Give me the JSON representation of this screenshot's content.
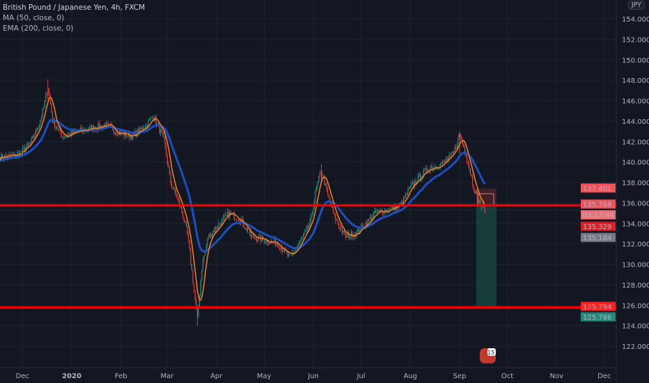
{
  "legend": {
    "symbol": "British Pound / Japanese Yen, 4h, FXCM",
    "ma": "MA (50, close, 0)",
    "ema": "EMA (200, close, 0)"
  },
  "currency": "JPY",
  "countdown": "03:17:44",
  "event_badge": "15",
  "colors": {
    "background": "#131722",
    "up": "#26a69a",
    "down": "#ef5350",
    "ma": "#f7821b",
    "ema": "#1e4fc2",
    "level_line": "#ff0000",
    "stop_zone": "#4a2328",
    "target_zone": "#17413d"
  },
  "chart_data": {
    "type": "candlestick",
    "title": "British Pound / Japanese Yen, 4h, FXCM",
    "y_ticks": [
      "154.000",
      "152.000",
      "150.000",
      "148.000",
      "146.000",
      "144.000",
      "142.000",
      "140.000",
      "138.000",
      "136.000",
      "134.000",
      "132.000",
      "130.000",
      "128.000",
      "126.000",
      "124.000",
      "122.000"
    ],
    "ylim": [
      121.5,
      154.3
    ],
    "x_ticks": [
      {
        "label": "Dec",
        "date": "2019-12-01"
      },
      {
        "label": "2020",
        "date": "2020-01-01",
        "bold": true
      },
      {
        "label": "Feb",
        "date": "2020-02-01"
      },
      {
        "label": "Mar",
        "date": "2020-03-01"
      },
      {
        "label": "Apr",
        "date": "2020-04-01"
      },
      {
        "label": "May",
        "date": "2020-05-01"
      },
      {
        "label": "Jun",
        "date": "2020-06-01"
      },
      {
        "label": "Jul",
        "date": "2020-07-01"
      },
      {
        "label": "Aug",
        "date": "2020-08-01"
      },
      {
        "label": "Sep",
        "date": "2020-09-01"
      },
      {
        "label": "Oct",
        "date": "2020-10-01"
      },
      {
        "label": "Nov",
        "date": "2020-11-01"
      },
      {
        "label": "Dec",
        "date": "2020-12-01"
      }
    ],
    "approx_closes": [
      [
        "2019-11-17",
        140.5
      ],
      [
        "2019-11-27",
        140.6
      ],
      [
        "2019-12-06",
        141.8
      ],
      [
        "2019-12-11",
        143.5
      ],
      [
        "2019-12-14",
        145.0
      ],
      [
        "2019-12-17",
        147.5
      ],
      [
        "2019-12-20",
        144.0
      ],
      [
        "2019-12-26",
        142.5
      ],
      [
        "2020-01-04",
        142.9
      ],
      [
        "2020-01-13",
        143.3
      ],
      [
        "2020-01-22",
        143.6
      ],
      [
        "2020-01-30",
        142.9
      ],
      [
        "2020-02-08",
        142.5
      ],
      [
        "2020-02-17",
        143.6
      ],
      [
        "2020-02-21",
        144.6
      ],
      [
        "2020-02-28",
        142.2
      ],
      [
        "2020-03-03",
        138.1
      ],
      [
        "2020-03-10",
        135.4
      ],
      [
        "2020-03-14",
        132.7
      ],
      [
        "2020-03-19",
        126.0
      ],
      [
        "2020-03-20",
        124.5
      ],
      [
        "2020-03-23",
        130.0
      ],
      [
        "2020-03-27",
        132.7
      ],
      [
        "2020-04-03",
        134.0
      ],
      [
        "2020-04-09",
        135.0
      ],
      [
        "2020-04-16",
        134.4
      ],
      [
        "2020-04-23",
        132.7
      ],
      [
        "2020-05-01",
        132.4
      ],
      [
        "2020-05-10",
        132.0
      ],
      [
        "2020-05-17",
        130.6
      ],
      [
        "2020-05-23",
        132.0
      ],
      [
        "2020-05-30",
        134.0
      ],
      [
        "2020-06-03",
        137.5
      ],
      [
        "2020-06-06",
        139.2
      ],
      [
        "2020-06-10",
        136.8
      ],
      [
        "2020-06-14",
        134.7
      ],
      [
        "2020-06-21",
        132.7
      ],
      [
        "2020-06-27",
        133.0
      ],
      [
        "2020-07-04",
        134.0
      ],
      [
        "2020-07-10",
        135.0
      ],
      [
        "2020-07-19",
        135.4
      ],
      [
        "2020-07-26",
        135.8
      ],
      [
        "2020-08-01",
        137.5
      ],
      [
        "2020-08-08",
        138.8
      ],
      [
        "2020-08-14",
        139.5
      ],
      [
        "2020-08-21",
        139.8
      ],
      [
        "2020-08-28",
        140.8
      ],
      [
        "2020-09-01",
        142.7
      ],
      [
        "2020-09-05",
        140.8
      ],
      [
        "2020-09-10",
        137.5
      ],
      [
        "2020-09-14",
        135.8
      ],
      [
        "2020-09-17",
        135.4
      ]
    ],
    "indicators": [
      {
        "name": "MA (50, close, 0)",
        "type": "sma",
        "period": 50
      },
      {
        "name": "EMA (200, close, 0)",
        "type": "ema",
        "period": 200
      }
    ],
    "horizontal_levels": [
      135.768,
      125.794
    ],
    "position": {
      "entry": 135.768,
      "stop": 137.401,
      "target": 125.794,
      "side": "short"
    },
    "price_labels": [
      {
        "value": "137.401",
        "color": "#f0525b"
      },
      {
        "value": "135.768",
        "color": "#f0525b"
      },
      {
        "value": "135.329",
        "color": "#e31b23",
        "countdown": true
      },
      {
        "value": "135.184",
        "color": "#787b86"
      },
      {
        "value": "125.794",
        "color": "#ff2020"
      },
      {
        "value": "125.786",
        "color": "#1e8a7c"
      }
    ]
  }
}
